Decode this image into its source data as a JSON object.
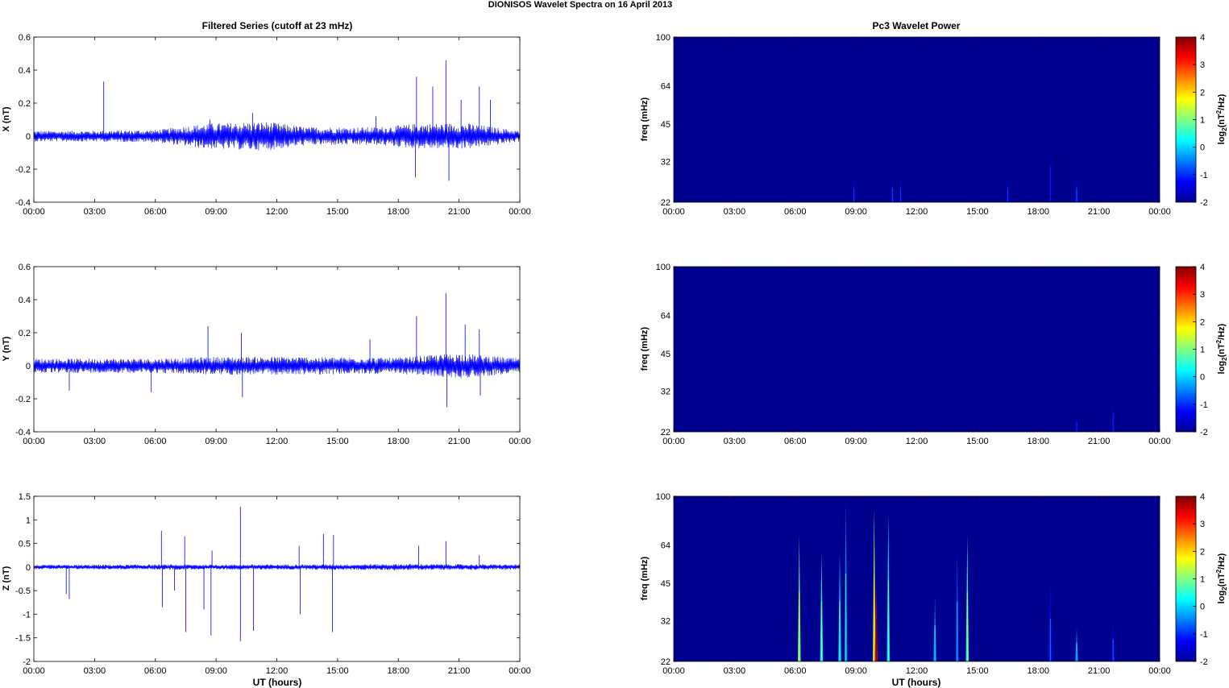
{
  "figure": {
    "title": "DIONISOS Wavelet Spectra on 16 April     2013",
    "left_column_title": "Filtered Series (cutoff at 23 mHz)",
    "right_column_title": "Pc3 Wavelet Power"
  },
  "colors": {
    "trace": "#0000ff",
    "background_power": "#00008f",
    "colormap": "jet"
  },
  "chart_data": [
    {
      "type": "line",
      "name": "filtered-x",
      "ylabel": "X (nT)",
      "xlabel": "",
      "xlim": [
        0,
        24
      ],
      "ylim": [
        -0.4,
        0.6
      ],
      "yticks": [
        -0.4,
        -0.2,
        0,
        0.2,
        0.4,
        0.6
      ],
      "ytick_labels": [
        "-0.4",
        "-0.2",
        "0",
        "0.2",
        "0.4",
        "0.6"
      ],
      "xtick_labels": [
        "00:00",
        "03:00",
        "06:00",
        "09:00",
        "12:00",
        "15:00",
        "18:00",
        "21:00",
        "00:00"
      ],
      "noise_envelope": [
        [
          0,
          0.03
        ],
        [
          3,
          0.03
        ],
        [
          6,
          0.035
        ],
        [
          8.5,
          0.07
        ],
        [
          11.5,
          0.08
        ],
        [
          13.5,
          0.05
        ],
        [
          17,
          0.05
        ],
        [
          19,
          0.07
        ],
        [
          21.5,
          0.07
        ],
        [
          24,
          0.03
        ]
      ],
      "spikes": [
        [
          3.45,
          0.33
        ],
        [
          8.7,
          0.1
        ],
        [
          10.8,
          0.14
        ],
        [
          16.9,
          0.12
        ],
        [
          18.9,
          0.36
        ],
        [
          19.7,
          0.3
        ],
        [
          20.35,
          0.46
        ],
        [
          20.5,
          -0.27
        ],
        [
          21.1,
          0.22
        ],
        [
          22.0,
          0.3
        ],
        [
          22.55,
          0.22
        ],
        [
          18.85,
          -0.25
        ]
      ]
    },
    {
      "type": "line",
      "name": "filtered-y",
      "ylabel": "Y (nT)",
      "xlabel": "",
      "xlim": [
        0,
        24
      ],
      "ylim": [
        -0.4,
        0.6
      ],
      "yticks": [
        -0.4,
        -0.2,
        0,
        0.2,
        0.4,
        0.6
      ],
      "ytick_labels": [
        "-0.4",
        "-0.2",
        "0",
        "0.2",
        "0.4",
        "0.6"
      ],
      "xtick_labels": [
        "00:00",
        "03:00",
        "06:00",
        "09:00",
        "12:00",
        "15:00",
        "18:00",
        "21:00",
        "00:00"
      ],
      "noise_envelope": [
        [
          0,
          0.04
        ],
        [
          6,
          0.04
        ],
        [
          9,
          0.05
        ],
        [
          12,
          0.05
        ],
        [
          18,
          0.045
        ],
        [
          21,
          0.07
        ],
        [
          24,
          0.04
        ]
      ],
      "spikes": [
        [
          1.75,
          -0.15
        ],
        [
          8.6,
          0.24
        ],
        [
          10.25,
          0.2
        ],
        [
          10.3,
          -0.19
        ],
        [
          18.9,
          0.3
        ],
        [
          20.35,
          0.44
        ],
        [
          20.4,
          -0.25
        ],
        [
          21.3,
          0.25
        ],
        [
          22.0,
          0.22
        ],
        [
          22.05,
          -0.18
        ],
        [
          5.8,
          -0.16
        ],
        [
          16.6,
          0.16
        ]
      ]
    },
    {
      "type": "line",
      "name": "filtered-z",
      "ylabel": "Z (nT)",
      "xlabel": "UT (hours)",
      "xlim": [
        0,
        24
      ],
      "ylim": [
        -2,
        1.5
      ],
      "yticks": [
        -2,
        -1.5,
        -1,
        -0.5,
        0,
        0.5,
        1,
        1.5
      ],
      "ytick_labels": [
        "-2",
        "-1.5",
        "-1",
        "-0.5",
        "0",
        "0.5",
        "1",
        "1.5"
      ],
      "xtick_labels": [
        "00:00",
        "03:00",
        "06:00",
        "09:00",
        "12:00",
        "15:00",
        "18:00",
        "21:00",
        "00:00"
      ],
      "noise_envelope": [
        [
          0,
          0.04
        ],
        [
          6,
          0.05
        ],
        [
          12,
          0.05
        ],
        [
          18,
          0.06
        ],
        [
          24,
          0.05
        ]
      ],
      "spikes": [
        [
          1.6,
          -0.57
        ],
        [
          1.75,
          -0.68
        ],
        [
          6.3,
          0.77
        ],
        [
          6.35,
          -0.85
        ],
        [
          6.95,
          -0.5
        ],
        [
          7.45,
          0.65
        ],
        [
          7.5,
          -1.38
        ],
        [
          8.4,
          -0.9
        ],
        [
          8.75,
          -1.45
        ],
        [
          8.8,
          0.35
        ],
        [
          10.2,
          1.28
        ],
        [
          10.2,
          -1.57
        ],
        [
          10.85,
          -1.35
        ],
        [
          13.1,
          0.45
        ],
        [
          13.15,
          -1.0
        ],
        [
          14.3,
          0.7
        ],
        [
          14.75,
          -1.38
        ],
        [
          14.8,
          0.68
        ],
        [
          19.0,
          0.45
        ],
        [
          20.35,
          0.55
        ],
        [
          22.0,
          0.25
        ]
      ]
    },
    {
      "type": "heatmap",
      "name": "wavelet-x",
      "ylabel": "freq (mHz)",
      "xlabel": "",
      "xlim": [
        0,
        24
      ],
      "ylim": [
        22,
        100
      ],
      "yscale": "log",
      "yticks": [
        22,
        32,
        45,
        64,
        100
      ],
      "xtick_labels": [
        "00:00",
        "03:00",
        "06:00",
        "09:00",
        "12:00",
        "15:00",
        "18:00",
        "21:00",
        "00:00"
      ],
      "colorbar_label": "log2(nT2/Hz)",
      "clim": [
        -2,
        4
      ],
      "colorbar_ticks": [
        "-2",
        "-1",
        "0",
        "1",
        "2",
        "3",
        "4"
      ],
      "background_value": -2,
      "events": [
        [
          8.9,
          28,
          -1.6
        ],
        [
          10.8,
          28,
          -1.5
        ],
        [
          11.2,
          28,
          -1.6
        ],
        [
          16.5,
          28,
          -1.6
        ],
        [
          18.6,
          40,
          -1.8
        ],
        [
          19.9,
          28,
          -1.4
        ]
      ]
    },
    {
      "type": "heatmap",
      "name": "wavelet-y",
      "ylabel": "freq (mHz)",
      "xlabel": "",
      "xlim": [
        0,
        24
      ],
      "ylim": [
        22,
        100
      ],
      "yscale": "log",
      "yticks": [
        22,
        32,
        45,
        64,
        100
      ],
      "xtick_labels": [
        "00:00",
        "03:00",
        "06:00",
        "09:00",
        "12:00",
        "15:00",
        "18:00",
        "21:00",
        "00:00"
      ],
      "colorbar_label": "log2(nT2/Hz)",
      "clim": [
        -2,
        4
      ],
      "colorbar_ticks": [
        "-2",
        "-1",
        "0",
        "1",
        "2",
        "3",
        "4"
      ],
      "background_value": -2,
      "events": [
        [
          19.9,
          26,
          -1.7
        ],
        [
          21.7,
          30,
          -1.7
        ]
      ]
    },
    {
      "type": "heatmap",
      "name": "wavelet-z",
      "ylabel": "freq (mHz)",
      "xlabel": "UT (hours)",
      "xlim": [
        0,
        24
      ],
      "ylim": [
        22,
        100
      ],
      "yscale": "log",
      "yticks": [
        22,
        32,
        45,
        64,
        100
      ],
      "xtick_labels": [
        "00:00",
        "03:00",
        "06:00",
        "09:00",
        "12:00",
        "15:00",
        "18:00",
        "21:00",
        "00:00"
      ],
      "colorbar_label": "log2(nT2/Hz)",
      "clim": [
        -2,
        4
      ],
      "colorbar_ticks": [
        "-2",
        "-1",
        "0",
        "1",
        "2",
        "3",
        "4"
      ],
      "background_value": -2,
      "events": [
        [
          6.2,
          70,
          0.8
        ],
        [
          7.3,
          60,
          0.3
        ],
        [
          8.2,
          60,
          0.0
        ],
        [
          8.5,
          95,
          -0.4
        ],
        [
          9.9,
          90,
          1.2
        ],
        [
          10.0,
          45,
          3.5
        ],
        [
          10.6,
          85,
          0.2
        ],
        [
          12.9,
          40,
          -0.5
        ],
        [
          14.0,
          60,
          -0.8
        ],
        [
          14.5,
          70,
          0.5
        ],
        [
          18.6,
          45,
          -1.2
        ],
        [
          19.9,
          30,
          -0.6
        ],
        [
          21.7,
          32,
          -1.3
        ]
      ]
    }
  ],
  "labels": {
    "p0": {
      "ylabel": "X (nT)",
      "y": [
        "-0.4",
        "-0.2",
        "0",
        "0.2",
        "0.4",
        "0.6"
      ]
    },
    "p1": {
      "ylabel": "Y (nT)",
      "y": [
        "-0.4",
        "-0.2",
        "0",
        "0.2",
        "0.4",
        "0.6"
      ]
    },
    "p2": {
      "ylabel": "Z (nT)",
      "xlabel": "UT (hours)",
      "y": [
        "-2",
        "-1.5",
        "-1",
        "-0.5",
        "0",
        "0.5",
        "1",
        "1.5"
      ]
    },
    "p3": {
      "ylabel": "freq (mHz)",
      "y": [
        "22",
        "32",
        "45",
        "64",
        "100"
      ]
    },
    "p4": {
      "ylabel": "freq (mHz)",
      "y": [
        "22",
        "32",
        "45",
        "64",
        "100"
      ]
    },
    "p5": {
      "ylabel": "freq (mHz)",
      "xlabel": "UT (hours)",
      "y": [
        "22",
        "32",
        "45",
        "64",
        "100"
      ]
    },
    "x": [
      "00:00",
      "03:00",
      "06:00",
      "09:00",
      "12:00",
      "15:00",
      "18:00",
      "21:00",
      "00:00"
    ],
    "cb": [
      "-2",
      "-1",
      "0",
      "1",
      "2",
      "3",
      "4"
    ],
    "cb_label_prefix": "log",
    "cb_label_sub": "2",
    "cb_label_mid": "(nT",
    "cb_label_sup": "2",
    "cb_label_suffix": "/Hz)"
  }
}
